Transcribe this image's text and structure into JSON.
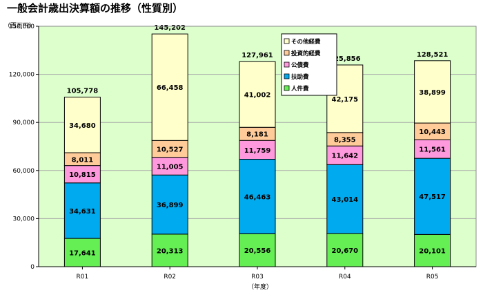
{
  "chart_data": {
    "type": "bar",
    "stacked": true,
    "title": "一般会計歳出決算額の推移（性質別）",
    "ylabel": "（百万円）",
    "xlabel": "（年度）",
    "ylim": [
      0,
      150000
    ],
    "yticks": [
      0,
      30000,
      60000,
      90000,
      120000,
      150000
    ],
    "ytick_labels": [
      "0",
      "30,000",
      "60,000",
      "90,000",
      "120,000",
      "150,000"
    ],
    "grid": true,
    "legend_position": "top-right",
    "categories": [
      "R01",
      "R02",
      "R03",
      "R04",
      "R05"
    ],
    "series": [
      {
        "name": "人件費",
        "color": "#66ee55",
        "values": [
          17641,
          20313,
          20556,
          20670,
          20101
        ],
        "labels": [
          "17,641",
          "20,313",
          "20,556",
          "20,670",
          "20,101"
        ]
      },
      {
        "name": "扶助費",
        "color": "#00aaee",
        "values": [
          34631,
          36899,
          46463,
          43014,
          47517
        ],
        "labels": [
          "34,631",
          "36,899",
          "46,463",
          "43,014",
          "47,517"
        ]
      },
      {
        "name": "公債費",
        "color": "#ff99dd",
        "values": [
          10815,
          11005,
          11759,
          11642,
          11561
        ],
        "labels": [
          "10,815",
          "11,005",
          "11,759",
          "11,642",
          "11,561"
        ]
      },
      {
        "name": "投資的経費",
        "color": "#ffcc99",
        "values": [
          8011,
          10527,
          8181,
          8355,
          10443
        ],
        "labels": [
          "8,011",
          "10,527",
          "8,181",
          "8,355",
          "10,443"
        ]
      },
      {
        "name": "その他経費",
        "color": "#ffffcc",
        "values": [
          34680,
          66458,
          41002,
          42175,
          38899
        ],
        "labels": [
          "34,680",
          "66,458",
          "41,002",
          "42,175",
          "38,899"
        ]
      }
    ],
    "totals": [
      105778,
      145202,
      127961,
      125856,
      128521
    ],
    "total_labels": [
      "105,778",
      "145,202",
      "127,961",
      "125,856",
      "128,521"
    ],
    "colors": {
      "plot_background": "#ddffcc",
      "grid": "#aaaaaa"
    }
  }
}
